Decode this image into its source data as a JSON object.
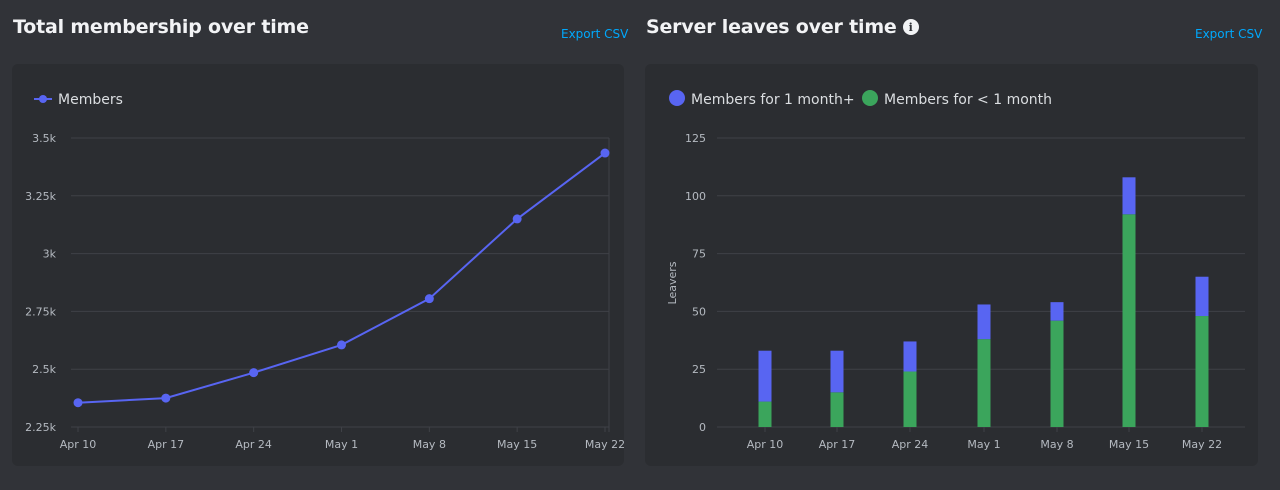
{
  "left": {
    "title": "Total membership over time",
    "export_label": "Export CSV"
  },
  "right": {
    "title": "Server leaves over time",
    "export_label": "Export CSV"
  },
  "colors": {
    "blue": "#5865f2",
    "green": "#3ba55c"
  },
  "chart_data": [
    {
      "type": "line",
      "title": "Total membership over time",
      "categories": [
        "Apr 10",
        "Apr 17",
        "Apr 24",
        "May 1",
        "May 8",
        "May 15",
        "May 22"
      ],
      "series": [
        {
          "name": "Members",
          "values": [
            2355,
            2375,
            2485,
            2605,
            2805,
            3150,
            3435
          ]
        }
      ],
      "yticks": [
        "2.25k",
        "2.5k",
        "2.75k",
        "3k",
        "3.25k",
        "3.5k"
      ],
      "ylim": [
        2250,
        3500
      ],
      "grid": true,
      "legend_placement": "top-left"
    },
    {
      "type": "bar",
      "stacked": true,
      "title": "Server leaves over time",
      "ylabel": "Leavers",
      "categories": [
        "Apr 10",
        "Apr 17",
        "Apr 24",
        "May 1",
        "May 8",
        "May 15",
        "May 22"
      ],
      "series": [
        {
          "name": "Members for < 1 month",
          "values": [
            11,
            15,
            24,
            38,
            46,
            92,
            48
          ]
        },
        {
          "name": "Members for 1 month+",
          "values": [
            22,
            18,
            13,
            15,
            8,
            16,
            17
          ]
        }
      ],
      "yticks": [
        "0",
        "25",
        "50",
        "75",
        "100",
        "125"
      ],
      "ylim": [
        0,
        125
      ],
      "grid": true,
      "legend_placement": "top-left"
    }
  ]
}
